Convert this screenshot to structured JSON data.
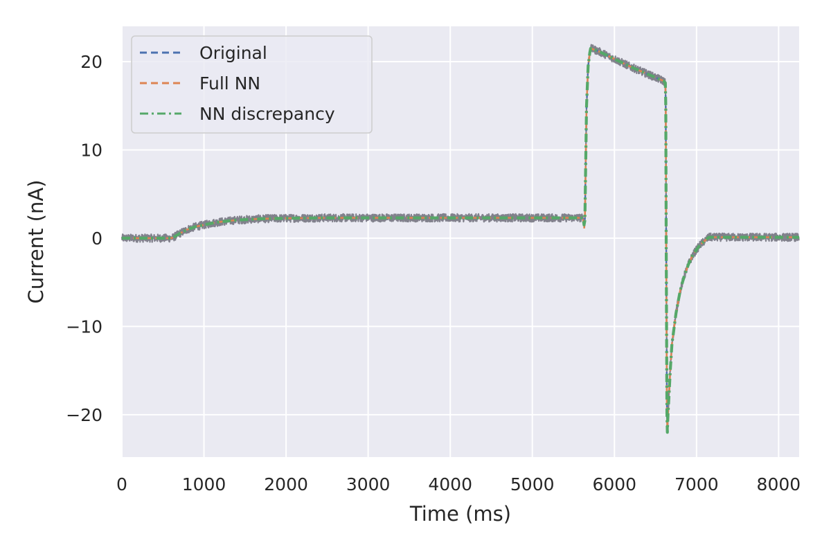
{
  "chart_data": {
    "type": "line",
    "title": "",
    "xlabel": "Time (ms)",
    "ylabel": "Current (nA)",
    "xlim": [
      0,
      8250
    ],
    "ylim": [
      -24.8,
      24
    ],
    "xticks": [
      0,
      1000,
      2000,
      3000,
      4000,
      5000,
      6000,
      7000,
      8000
    ],
    "yticks": [
      -20,
      -10,
      0,
      10,
      20
    ],
    "grid": true,
    "legend_position": "upper-left",
    "background": "#eaeaf2",
    "series": [
      {
        "name": "Original",
        "color": "#4c72b0",
        "style": "dashed",
        "x": [
          0,
          600,
          630,
          700,
          800,
          900,
          1000,
          1100,
          1200,
          1300,
          1400,
          1500,
          1700,
          2000,
          2500,
          3000,
          4000,
          5000,
          5600,
          5620,
          5630,
          5640,
          5660,
          5680,
          5700,
          5710,
          5800,
          6000,
          6200,
          6400,
          6600,
          6620,
          6625,
          6630,
          6640,
          6645,
          6650,
          6680,
          6700,
          6750,
          6800,
          6850,
          6900,
          6950,
          7000,
          7050,
          7100,
          7150,
          7500,
          8000,
          8250
        ],
        "y": [
          0,
          0,
          0.1,
          0.5,
          1.0,
          1.3,
          1.5,
          1.7,
          1.85,
          1.95,
          2.05,
          2.1,
          2.2,
          2.25,
          2.3,
          2.3,
          2.3,
          2.3,
          2.3,
          2.2,
          1.5,
          2.0,
          15.0,
          19.5,
          21.0,
          21.5,
          21.2,
          20.3,
          19.4,
          18.6,
          17.8,
          17.6,
          15.0,
          0.0,
          -20.0,
          -22.0,
          -20.5,
          -15.0,
          -12.0,
          -8.5,
          -6.0,
          -4.3,
          -3.0,
          -2.0,
          -1.3,
          -0.7,
          -0.3,
          0.1,
          0.1,
          0.1,
          0.1
        ]
      },
      {
        "name": "Full NN",
        "color": "#dd8452",
        "style": "dashed",
        "x": [
          0,
          600,
          630,
          700,
          800,
          900,
          1000,
          1100,
          1200,
          1300,
          1400,
          1500,
          1700,
          2000,
          2500,
          3000,
          4000,
          5000,
          5600,
          5620,
          5630,
          5640,
          5660,
          5680,
          5700,
          5710,
          5800,
          6000,
          6200,
          6400,
          6600,
          6620,
          6625,
          6630,
          6640,
          6645,
          6650,
          6680,
          6700,
          6750,
          6800,
          6850,
          6900,
          6950,
          7000,
          7050,
          7100,
          7150,
          7500,
          8000,
          8250
        ],
        "y": [
          0,
          0,
          0.1,
          0.5,
          1.0,
          1.3,
          1.5,
          1.7,
          1.85,
          1.95,
          2.05,
          2.1,
          2.2,
          2.25,
          2.3,
          2.3,
          2.3,
          2.3,
          2.3,
          2.2,
          1.0,
          2.0,
          15.0,
          19.5,
          21.0,
          21.5,
          21.2,
          20.3,
          19.4,
          18.6,
          17.8,
          17.6,
          15.0,
          0.0,
          -20.0,
          -21.5,
          -20.5,
          -15.0,
          -12.0,
          -8.5,
          -6.0,
          -4.3,
          -3.0,
          -2.0,
          -1.3,
          -0.7,
          -0.3,
          0.1,
          0.1,
          0.1,
          0.1
        ]
      },
      {
        "name": "NN discrepancy",
        "color": "#55a868",
        "style": "dashdot",
        "x": [
          0,
          600,
          630,
          700,
          800,
          900,
          1000,
          1100,
          1200,
          1300,
          1400,
          1500,
          1700,
          2000,
          2500,
          3000,
          4000,
          5000,
          5600,
          5620,
          5630,
          5640,
          5660,
          5680,
          5700,
          5710,
          5800,
          6000,
          6200,
          6400,
          6600,
          6620,
          6625,
          6630,
          6640,
          6645,
          6650,
          6680,
          6700,
          6750,
          6800,
          6850,
          6900,
          6950,
          7000,
          7050,
          7100,
          7150,
          7500,
          8000,
          8250
        ],
        "y": [
          0,
          0,
          0.1,
          0.5,
          1.0,
          1.3,
          1.5,
          1.7,
          1.85,
          1.95,
          2.05,
          2.1,
          2.2,
          2.25,
          2.3,
          2.3,
          2.3,
          2.3,
          2.3,
          2.2,
          1.5,
          2.0,
          15.0,
          19.5,
          21.0,
          21.5,
          21.2,
          20.3,
          19.4,
          18.6,
          17.8,
          17.6,
          15.0,
          0.0,
          -20.0,
          -22.0,
          -20.5,
          -15.0,
          -12.0,
          -8.5,
          -6.0,
          -4.3,
          -3.0,
          -2.0,
          -1.3,
          -0.7,
          -0.3,
          0.1,
          0.1,
          0.1,
          0.1
        ]
      }
    ]
  }
}
